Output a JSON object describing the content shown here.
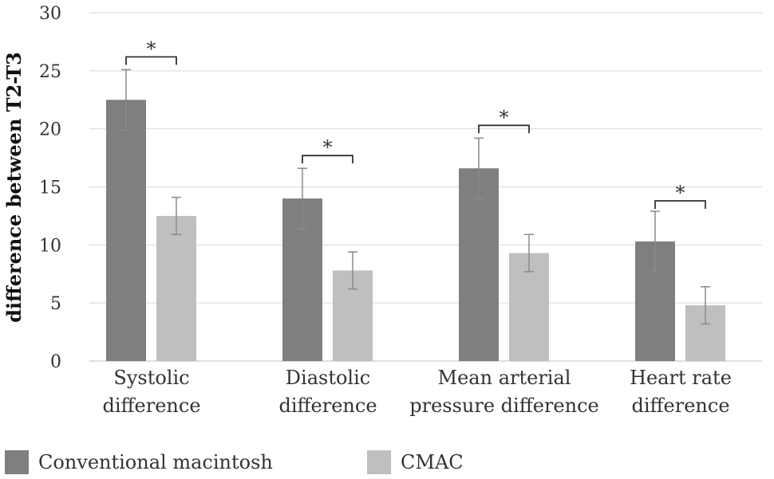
{
  "chart_data": {
    "type": "bar",
    "title": "",
    "xlabel": "",
    "ylabel": "difference between T2-T3",
    "ylim": [
      0,
      30
    ],
    "yticks": [
      0,
      5,
      10,
      15,
      20,
      25,
      30
    ],
    "grid": true,
    "legend_position": "bottom",
    "categories": [
      [
        "Systolic",
        "difference"
      ],
      [
        "Diastolic",
        "difference"
      ],
      [
        "Mean arterial",
        "pressure difference"
      ],
      [
        "Heart rate",
        "difference"
      ]
    ],
    "series": [
      {
        "name": "Conventional macintosh",
        "color": "#7f7f7f",
        "values": [
          22.5,
          14.0,
          16.6,
          10.3
        ],
        "error": [
          2.6,
          2.6,
          2.6,
          2.6
        ]
      },
      {
        "name": "CMAC",
        "color": "#bfbfbf",
        "values": [
          12.5,
          7.8,
          9.3,
          4.8
        ],
        "error": [
          1.6,
          1.6,
          1.6,
          1.6
        ]
      }
    ],
    "significance": [
      {
        "category": 0,
        "label": "*",
        "at": 26.2
      },
      {
        "category": 1,
        "label": "*",
        "at": 17.7
      },
      {
        "category": 2,
        "label": "*",
        "at": 20.3
      },
      {
        "category": 3,
        "label": "*",
        "at": 13.8
      }
    ]
  }
}
